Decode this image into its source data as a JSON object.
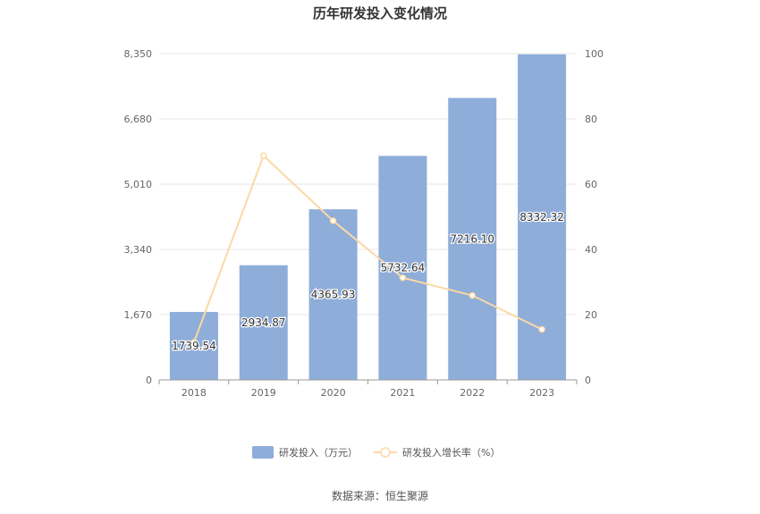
{
  "chart_data": {
    "type": "bar",
    "title": "历年研发投入变化情况",
    "categories": [
      "2018",
      "2019",
      "2020",
      "2021",
      "2022",
      "2023"
    ],
    "series": [
      {
        "name": "研发投入（万元）",
        "type": "bar",
        "axis": "left",
        "values": [
          1739.54,
          2934.87,
          4365.93,
          5732.64,
          7216.1,
          8332.32
        ],
        "labels": [
          "1739.54",
          "2934.87",
          "4365.93",
          "5732.64",
          "7216.10",
          "8332.32"
        ],
        "color": "#8eadd9"
      },
      {
        "name": "研发投入增长率（%）",
        "type": "line",
        "axis": "right",
        "values": [
          11.5,
          68.71,
          48.76,
          31.3,
          25.88,
          15.47
        ],
        "color": "#fbd9a5"
      }
    ],
    "y_left": {
      "ticks": [
        "0",
        "1,670",
        "3,340",
        "5,010",
        "6,680",
        "8,350"
      ],
      "ylim": [
        0,
        8350
      ]
    },
    "y_right": {
      "ticks": [
        "0",
        "20",
        "40",
        "60",
        "80",
        "100"
      ],
      "ylim": [
        0,
        100
      ]
    },
    "grid": true,
    "legend_position": "bottom"
  },
  "source": "数据来源：恒生聚源"
}
